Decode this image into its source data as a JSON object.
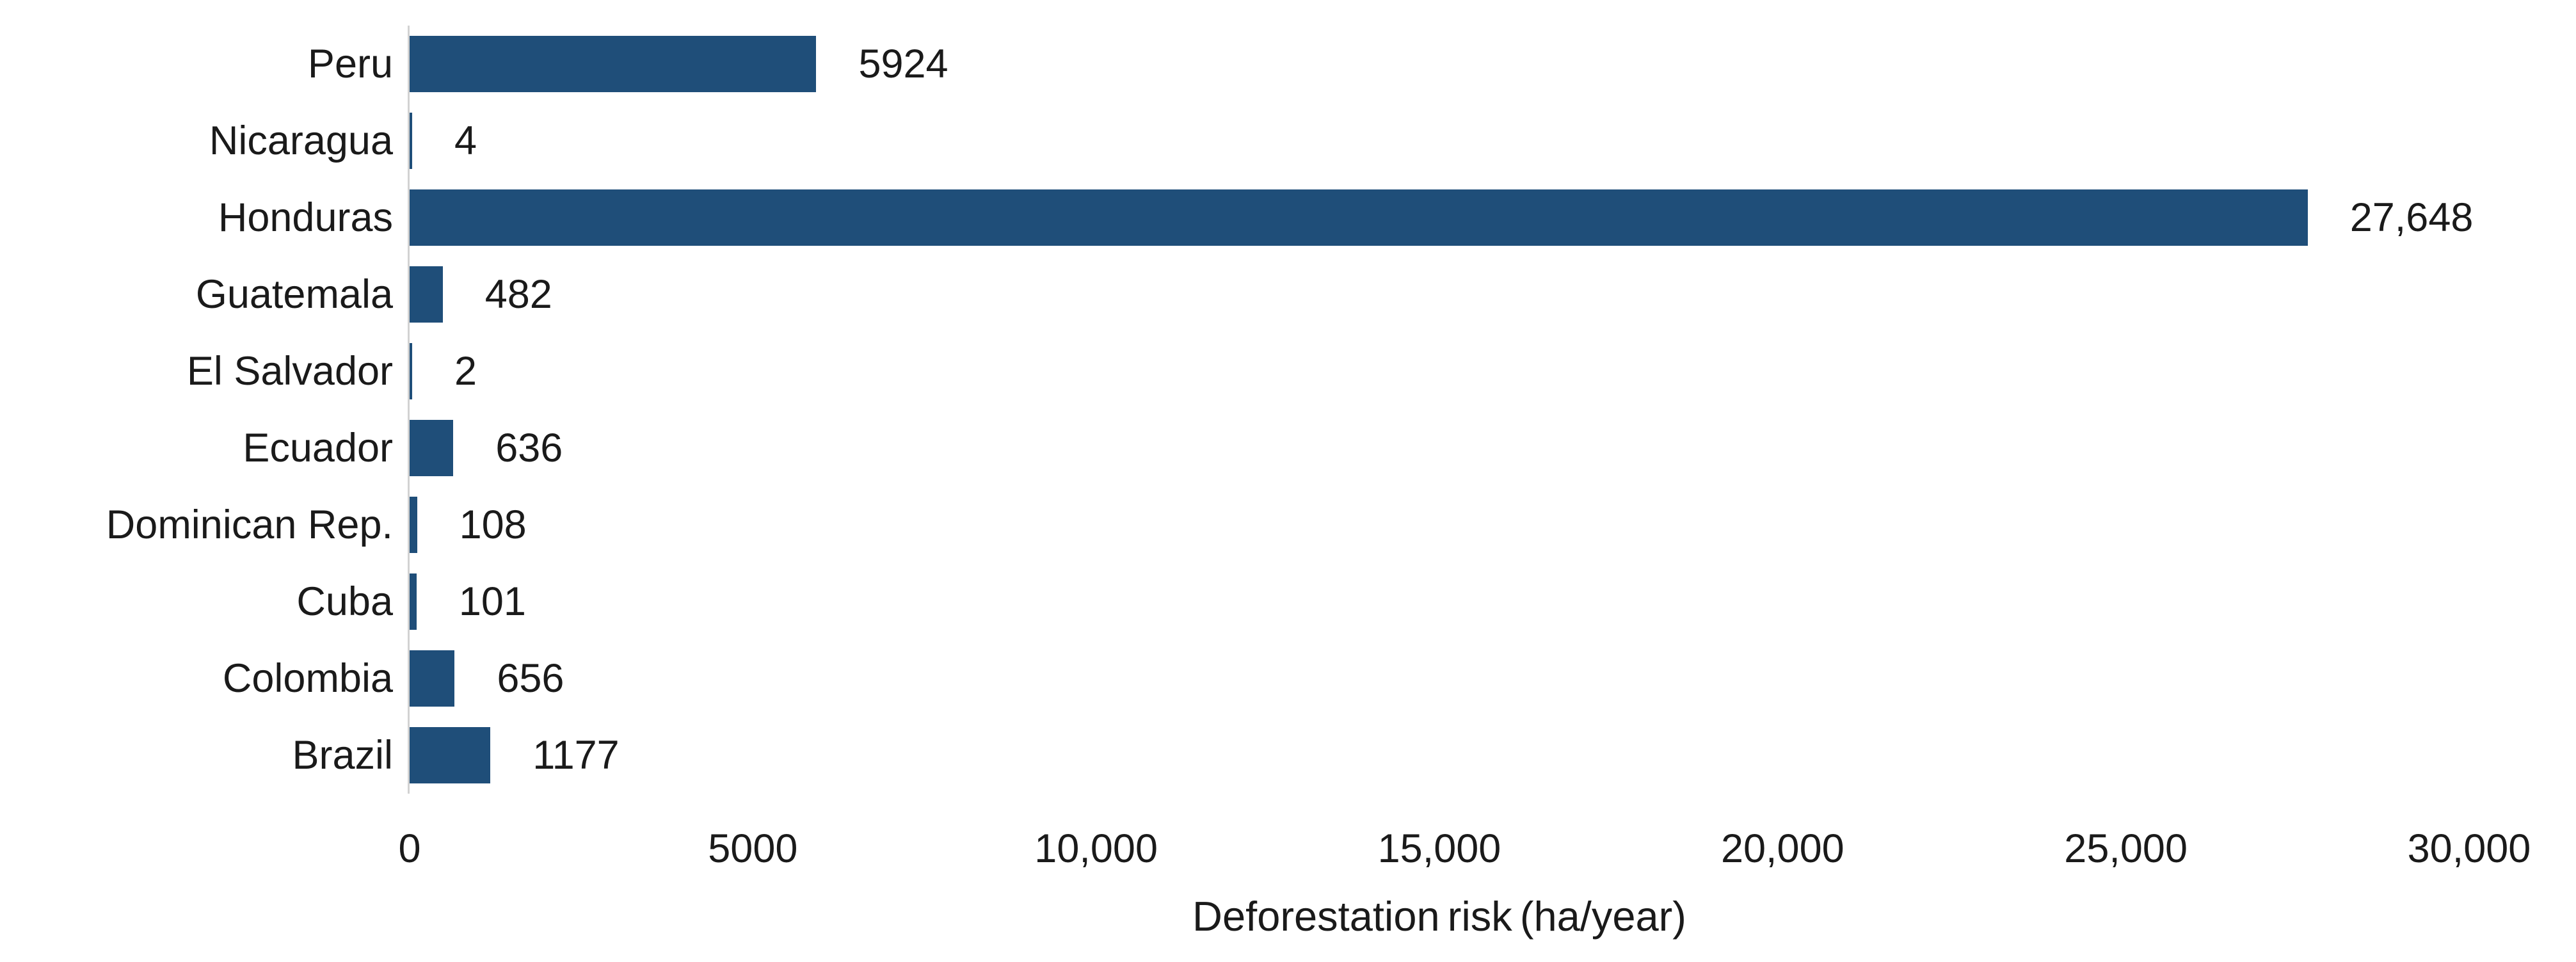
{
  "chart_data": {
    "type": "bar",
    "orientation": "horizontal",
    "title": "",
    "xlabel": "Deforestation risk (ha/year)",
    "xlim": [
      0,
      30000
    ],
    "grid": false,
    "legend": false,
    "categories": [
      "Peru",
      "Nicaragua",
      "Honduras",
      "Guatemala",
      "El Salvador",
      "Ecuador",
      "Dominican Rep.",
      "Cuba",
      "Colombia",
      "Brazil"
    ],
    "values": [
      5924,
      4,
      27648,
      482,
      2,
      636,
      108,
      101,
      656,
      1177
    ],
    "rows": [
      {
        "category": "Peru",
        "value": 5924,
        "value_label": "5924"
      },
      {
        "category": "Nicaragua",
        "value": 4,
        "value_label": "4"
      },
      {
        "category": "Honduras",
        "value": 27648,
        "value_label": "27,648"
      },
      {
        "category": "Guatemala",
        "value": 482,
        "value_label": "482"
      },
      {
        "category": "El Salvador",
        "value": 2,
        "value_label": "2"
      },
      {
        "category": "Ecuador",
        "value": 636,
        "value_label": "636"
      },
      {
        "category": "Dominican Rep.",
        "value": 108,
        "value_label": "108"
      },
      {
        "category": "Cuba",
        "value": 101,
        "value_label": "101"
      },
      {
        "category": "Colombia",
        "value": 656,
        "value_label": "656"
      },
      {
        "category": "Brazil",
        "value": 1177,
        "value_label": "1177"
      }
    ],
    "xticks": [
      {
        "value": 0,
        "label": "0"
      },
      {
        "value": 5000,
        "label": "5000"
      },
      {
        "value": 10000,
        "label": "10,000"
      },
      {
        "value": 15000,
        "label": "15,000"
      },
      {
        "value": 20000,
        "label": "20,000"
      },
      {
        "value": 25000,
        "label": "25,000"
      },
      {
        "value": 30000,
        "label": "30,000"
      }
    ],
    "colors": {
      "bar": "#1F4E79",
      "axis_line": "#D2D2D2",
      "text": "#1A1A1A",
      "background": "#FFFFFF"
    }
  }
}
